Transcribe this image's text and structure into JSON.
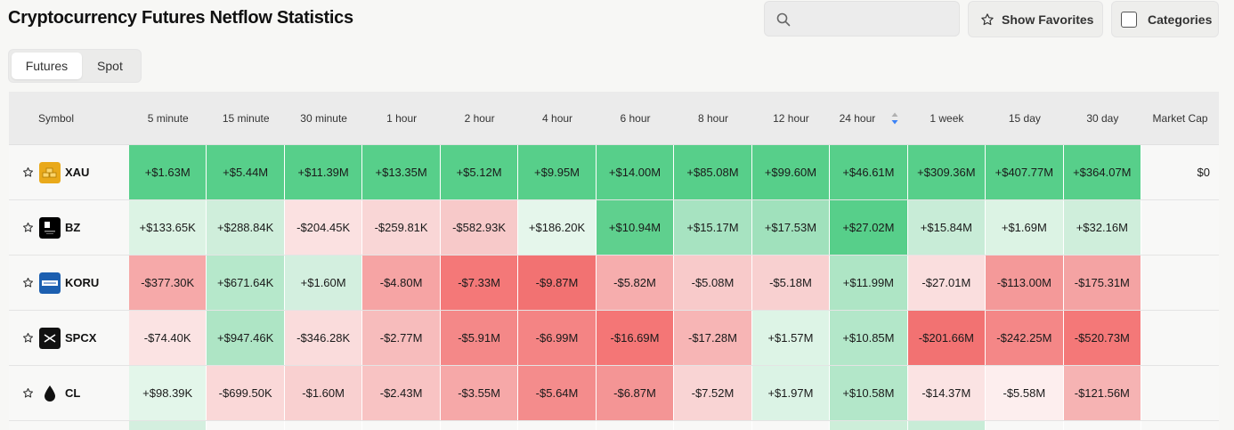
{
  "page": {
    "title": "Cryptocurrency Futures Netflow Statistics"
  },
  "search": {
    "placeholder": ""
  },
  "toolbar": {
    "favorites_label": "Show Favorites",
    "categories_label": "Categories"
  },
  "tabs": [
    {
      "label": "Futures",
      "active": true
    },
    {
      "label": "Spot",
      "active": false
    }
  ],
  "table": {
    "columns": [
      "Symbol",
      "5 minute",
      "15 minute",
      "30 minute",
      "1 hour",
      "2 hour",
      "4 hour",
      "6 hour",
      "8 hour",
      "12 hour",
      "24 hour",
      "1 week",
      "15 day",
      "30 day",
      "Market Cap"
    ],
    "sorted_column": "24 hour",
    "rows": [
      {
        "symbol": "XAU",
        "icon": "gold-bars-icon",
        "values": [
          "+$1.63M",
          "+$5.44M",
          "+$11.39M",
          "+$13.35M",
          "+$5.12M",
          "+$9.95M",
          "+$14.00M",
          "+$85.08M",
          "+$99.60M",
          "+$46.61M",
          "+$309.36M",
          "+$407.77M",
          "+$364.07M"
        ],
        "colors": [
          "#57cf8a",
          "#57cf8a",
          "#57cf8a",
          "#57cf8a",
          "#57cf8a",
          "#57cf8a",
          "#57cf8a",
          "#57cf8a",
          "#57cf8a",
          "#57cf8a",
          "#57cf8a",
          "#57cf8a",
          "#57cf8a"
        ],
        "market_cap": "$0"
      },
      {
        "symbol": "BZ",
        "icon": "bz-logo-icon",
        "values": [
          "+$133.65K",
          "+$288.84K",
          "-$204.45K",
          "-$259.81K",
          "-$582.93K",
          "+$186.20K",
          "+$10.94M",
          "+$15.17M",
          "+$17.53M",
          "+$27.02M",
          "+$15.84M",
          "+$1.69M",
          "+$32.16M"
        ],
        "colors": [
          "#dcf3e4",
          "#cfeedb",
          "#fbe1e1",
          "#f9d6d6",
          "#f7c9c9",
          "#e5f6eb",
          "#5fd08e",
          "#a7e3c1",
          "#a0e1bc",
          "#57cf8a",
          "#c8ecd7",
          "#dcf3e4",
          "#cfeedb"
        ],
        "market_cap": ""
      },
      {
        "symbol": "KORU",
        "icon": "koru-logo-icon",
        "values": [
          "-$377.30K",
          "+$671.64K",
          "+$1.60M",
          "-$4.80M",
          "-$7.33M",
          "-$9.87M",
          "-$5.82M",
          "-$5.08M",
          "-$5.18M",
          "+$11.99M",
          "-$27.01M",
          "-$113.00M",
          "-$175.31M"
        ],
        "colors": [
          "#f6a9a9",
          "#b6e8cb",
          "#d3efdf",
          "#f6a4a4",
          "#f47878",
          "#f27272",
          "#f6adad",
          "#f8caca",
          "#f8d0d0",
          "#aee5c5",
          "#fadede",
          "#f49999",
          "#f4a3a3"
        ],
        "market_cap": ""
      },
      {
        "symbol": "SPCX",
        "icon": "spcx-logo-icon",
        "values": [
          "-$74.40K",
          "+$947.46K",
          "-$346.28K",
          "-$2.77M",
          "-$5.91M",
          "-$6.99M",
          "-$16.69M",
          "-$17.28M",
          "+$1.57M",
          "+$10.85M",
          "-$201.66M",
          "-$242.25M",
          "-$520.73M"
        ],
        "colors": [
          "#fbe3e3",
          "#aee5c5",
          "#fadcdc",
          "#f7bcbc",
          "#f48888",
          "#f48484",
          "#f47676",
          "#f7b5b5",
          "#ddf4e6",
          "#b3e7c9",
          "#f27272",
          "#f48787",
          "#f47878"
        ],
        "market_cap": ""
      },
      {
        "symbol": "CL",
        "icon": "oil-drop-icon",
        "values": [
          "+$98.39K",
          "-$699.50K",
          "-$1.60M",
          "-$2.43M",
          "-$3.55M",
          "-$5.64M",
          "-$6.87M",
          "-$7.52M",
          "+$1.97M",
          "+$10.58M",
          "-$14.37M",
          "-$5.58M",
          "-$121.56M"
        ],
        "colors": [
          "#e3f6ea",
          "#fad8d8",
          "#f9d0d0",
          "#f8c3c3",
          "#f6a8a8",
          "#f48c8c",
          "#f49595",
          "#f9d4d4",
          "#dbf3e5",
          "#b3e7c9",
          "#fbe3e3",
          "#fdeeee",
          "#f6b3b3"
        ],
        "market_cap": ""
      }
    ],
    "partial_row_colors": [
      "#f8f8f7",
      "#d4efdf",
      "#f8f8f7",
      "#f8f8f7",
      "#f8f8f7",
      "#f8f8f7",
      "#f8f8f7",
      "#f8f8f7",
      "#f8f8f7",
      "#f8f8f7",
      "#cdeed9",
      "#c8ecd7",
      "#f8f8f7",
      "#f8f8f7",
      "#f8f8f7"
    ]
  }
}
